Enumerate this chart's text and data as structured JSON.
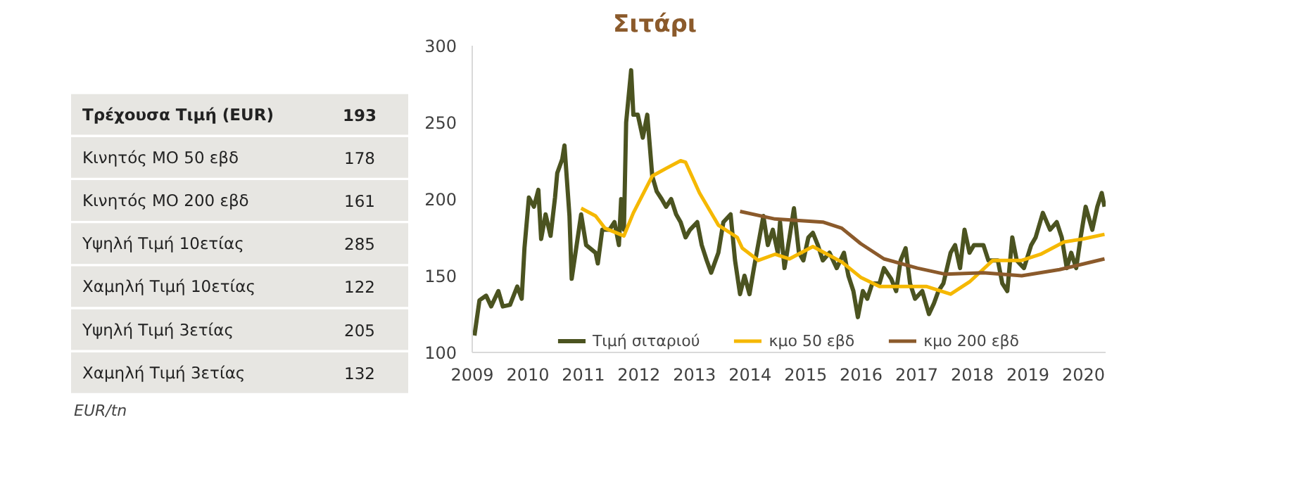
{
  "chart_data": [
    {
      "type": "other",
      "categories": [
        "Τρέχουσα Τιμή (EUR)",
        "Κινητός ΜΟ 50 εβδ",
        "Κινητός ΜΟ 200 εβδ",
        "Υψηλή Τιμή 10ετίας",
        "Χαμηλή Τιμή 10ετίας",
        "Υψηλή Τιμή 3ετίας",
        "Χαμηλή Τιμή 3ετίας"
      ],
      "values": [
        193,
        178,
        161,
        285,
        122,
        205,
        132
      ],
      "data_labels": true,
      "color": "#e7e6e2",
      "annotations": [
        "EUR/tn"
      ]
    },
    {
      "type": "line",
      "title": "Σιτάρι",
      "xlim": [
        2009,
        2020.4
      ],
      "ylim": [
        100,
        300
      ],
      "xticks": [
        2009,
        2010,
        2011,
        2012,
        2013,
        2014,
        2015,
        2016,
        2017,
        2018,
        2019,
        2020
      ],
      "yticks": [
        100,
        150,
        200,
        250,
        300
      ],
      "grid": false,
      "legend": "bottom",
      "marker": "none",
      "line_style": "solid",
      "series": [
        {
          "name": "Τιμή σιταριού",
          "color": "#4b5320",
          "x": [
            2009.04,
            2009.13,
            2009.25,
            2009.34,
            2009.47,
            2009.55,
            2009.68,
            2009.81,
            2009.89,
            2009.94,
            2010.02,
            2010.11,
            2010.19,
            2010.24,
            2010.32,
            2010.41,
            2010.49,
            2010.53,
            2010.62,
            2010.66,
            2010.75,
            2010.79,
            2010.96,
            2011.05,
            2011.22,
            2011.26,
            2011.34,
            2011.47,
            2011.56,
            2011.64,
            2011.68,
            2011.73,
            2011.77,
            2011.86,
            2011.9,
            2011.98,
            2012.07,
            2012.15,
            2012.24,
            2012.32,
            2012.41,
            2012.49,
            2012.58,
            2012.67,
            2012.75,
            2012.84,
            2012.92,
            2013.05,
            2013.13,
            2013.22,
            2013.3,
            2013.43,
            2013.52,
            2013.65,
            2013.73,
            2013.82,
            2013.9,
            2013.99,
            2014.07,
            2014.24,
            2014.32,
            2014.41,
            2014.5,
            2014.54,
            2014.62,
            2014.71,
            2014.79,
            2014.88,
            2014.96,
            2015.05,
            2015.13,
            2015.22,
            2015.31,
            2015.43,
            2015.56,
            2015.69,
            2015.77,
            2015.86,
            2015.94,
            2016.03,
            2016.11,
            2016.2,
            2016.33,
            2016.41,
            2016.54,
            2016.63,
            2016.71,
            2016.8,
            2016.88,
            2016.97,
            2017.1,
            2017.22,
            2017.31,
            2017.39,
            2017.48,
            2017.61,
            2017.69,
            2017.78,
            2017.86,
            2017.95,
            2018.03,
            2018.2,
            2018.29,
            2018.46,
            2018.54,
            2018.63,
            2018.72,
            2018.8,
            2018.93,
            2019.06,
            2019.14,
            2019.27,
            2019.4,
            2019.52,
            2019.61,
            2019.7,
            2019.78,
            2019.87,
            2019.95,
            2020.04,
            2020.16,
            2020.25,
            2020.33,
            2020.38
          ],
          "values": [
            111,
            134,
            137,
            130,
            140,
            130,
            131,
            143,
            135,
            168,
            201,
            195,
            206,
            174,
            190,
            176,
            201,
            217,
            226,
            235,
            189,
            148,
            190,
            170,
            165,
            158,
            180,
            180,
            185,
            170,
            200,
            180,
            250,
            284,
            255,
            255,
            240,
            255,
            215,
            205,
            200,
            195,
            200,
            190,
            185,
            175,
            180,
            185,
            170,
            160,
            152,
            165,
            185,
            190,
            160,
            138,
            150,
            138,
            155,
            189,
            170,
            180,
            165,
            185,
            155,
            175,
            194,
            165,
            160,
            175,
            178,
            170,
            160,
            165,
            155,
            165,
            150,
            140,
            123,
            140,
            135,
            145,
            145,
            155,
            148,
            140,
            160,
            168,
            145,
            135,
            140,
            125,
            132,
            140,
            145,
            165,
            170,
            155,
            180,
            165,
            170,
            170,
            160,
            160,
            145,
            140,
            175,
            160,
            155,
            170,
            175,
            191,
            180,
            185,
            175,
            155,
            165,
            155,
            175,
            195,
            180,
            195,
            204,
            195
          ]
        },
        {
          "name": "κμο 50 εβδ",
          "color": "#f5b800",
          "x": [
            2010.96,
            2011.22,
            2011.39,
            2011.73,
            2011.9,
            2012.24,
            2012.49,
            2012.75,
            2012.84,
            2013.09,
            2013.43,
            2013.77,
            2013.86,
            2014.15,
            2014.45,
            2014.71,
            2015.13,
            2015.65,
            2015.99,
            2016.33,
            2016.84,
            2017.18,
            2017.61,
            2017.95,
            2018.37,
            2018.89,
            2019.23,
            2019.65,
            2019.99,
            2020.38
          ],
          "values": [
            194,
            189,
            181,
            176,
            191,
            215,
            220,
            225,
            224,
            204,
            183,
            175,
            168,
            160,
            164,
            161,
            169,
            159,
            149,
            143,
            143,
            143,
            138,
            146,
            160,
            160,
            164,
            172,
            174,
            177
          ]
        },
        {
          "name": "κμο 200 εβδ",
          "color": "#8b5a2b",
          "x": [
            2013.82,
            2014.45,
            2015.31,
            2015.65,
            2015.99,
            2016.41,
            2017.01,
            2017.52,
            2018.2,
            2018.89,
            2019.57,
            2020.38
          ],
          "values": [
            192,
            187,
            185,
            181,
            171,
            161,
            155,
            151,
            152,
            150,
            154,
            161
          ]
        }
      ]
    }
  ]
}
